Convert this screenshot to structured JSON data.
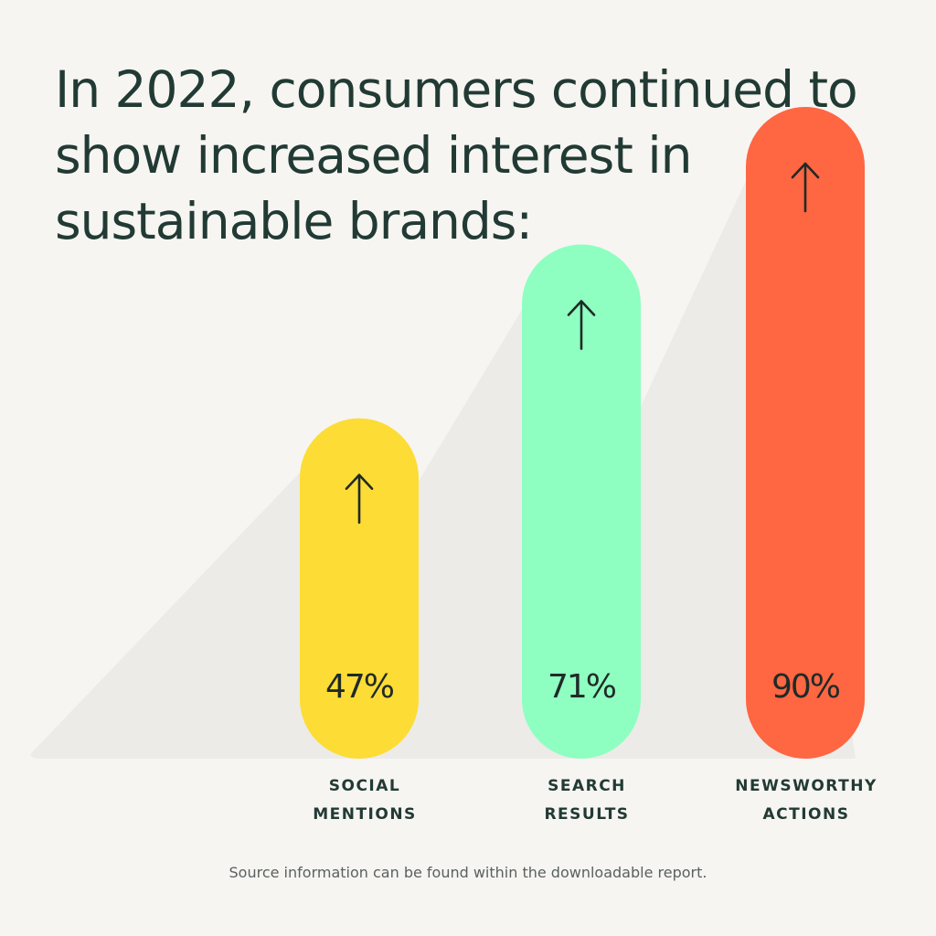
{
  "headline": "In 2022, consumers continued to show increased interest in sustainable brands:",
  "source_note": "Source information can be found within the downloadable report.",
  "colors": {
    "background": "#f6f5f2",
    "shadow": "#ecebe8",
    "text": "#223a34",
    "arrow": "#1f2a27"
  },
  "chart_data": {
    "type": "bar",
    "title": "In 2022, consumers continued to show increased interest in sustainable brands:",
    "categories": [
      {
        "line1": "SOCIAL",
        "line2": "MENTIONS"
      },
      {
        "line1": "SEARCH",
        "line2": "RESULTS"
      },
      {
        "line1": "NEWSWORTHY",
        "line2": "ACTIONS"
      }
    ],
    "values": [
      47,
      71,
      90
    ],
    "value_labels": [
      "47%",
      "71%",
      "90%"
    ],
    "bar_colors": [
      "#fddc35",
      "#8effc0",
      "#ff6642"
    ],
    "unit": "%",
    "ylim": [
      0,
      100
    ],
    "direction_icon": "arrow-up-icon",
    "xlabel": "",
    "ylabel": ""
  }
}
